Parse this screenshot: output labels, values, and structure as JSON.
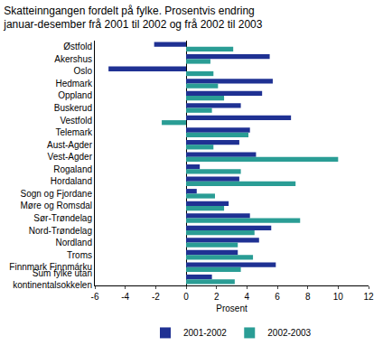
{
  "chart_data": {
    "type": "bar",
    "title": "Skatteinngangen fordelt på fylke. Prosentvis endring januar-desember frå 2001 til 2002 og frå 2002 til 2003",
    "orientation": "horizontal",
    "x_label": "Prosent",
    "categories": [
      "Østfold",
      "Akershus",
      "Oslo",
      "Hedmark",
      "Oppland",
      "Buskerud",
      "Vestfold",
      "Telemark",
      "Aust-Agder",
      "Vest-Agder",
      "Rogaland",
      "Hordaland",
      "Sogn og Fjordane",
      "Møre og Romsdal",
      "Sør-Trøndelag",
      "Nord-Trøndelag",
      "Nordland",
      "Troms",
      "Finnmark Finnmárku",
      "Sum fylke utan kontinentalsokkelen"
    ],
    "series": [
      {
        "name": "2001-2002",
        "color": "#1f3193",
        "values": [
          -2.1,
          5.5,
          -5.1,
          5.7,
          5.0,
          3.6,
          6.9,
          4.2,
          3.5,
          4.6,
          0.9,
          3.5,
          0.7,
          2.8,
          4.2,
          5.6,
          4.8,
          3.4,
          5.9,
          1.7
        ]
      },
      {
        "name": "2002-2003",
        "color": "#2a9d95",
        "values": [
          3.1,
          1.6,
          1.8,
          2.1,
          2.5,
          1.7,
          -1.6,
          4.1,
          1.8,
          10.0,
          3.6,
          7.2,
          1.9,
          2.5,
          7.5,
          4.5,
          3.4,
          4.4,
          3.6,
          3.2
        ]
      }
    ],
    "xlim": [
      -6,
      12
    ],
    "xticks": [
      -6,
      -4,
      -2,
      0,
      2,
      4,
      6,
      8,
      10,
      12
    ],
    "grid": false,
    "legend": "bottom"
  }
}
